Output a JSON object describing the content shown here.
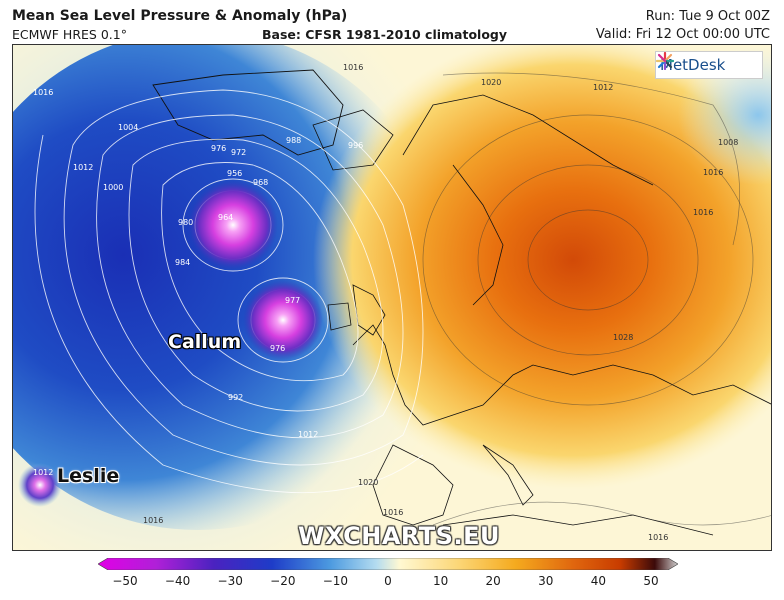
{
  "header": {
    "title": "Mean Sea Level Pressure & Anomaly (hPa)",
    "model": "ECMWF HRES 0.1°",
    "base": "Base: CFSR 1981-2010 climatology",
    "run": "Run: Tue 9 Oct 00Z",
    "valid": "Valid: Fri 12 Oct 00:00 UTC"
  },
  "brand": {
    "logo_text": "MetDesk",
    "watermark": "WXCHARTS.EU"
  },
  "storms": {
    "callum": "Callum",
    "leslie": "Leslie"
  },
  "isobars": {
    "l1": "1016",
    "l2": "1016",
    "l3": "1012",
    "l4": "1004",
    "l5": "1000",
    "l6": "1012",
    "l7": "988",
    "l8": "996",
    "l9": "976",
    "l10": "972",
    "l11": "968",
    "l12": "964",
    "l13": "956",
    "l14": "980",
    "l15": "984",
    "l16": "977",
    "l17": "976",
    "l18": "992",
    "l19": "1012",
    "l20": "1020",
    "l21": "1012",
    "l22": "1016",
    "l23": "1008",
    "l24": "1016",
    "l25": "1028",
    "l26": "1020",
    "l27": "1016",
    "l28": "1016",
    "l29": "1016"
  },
  "colorbar": {
    "ticks": [
      "−50",
      "−40",
      "−30",
      "−20",
      "−10",
      "0",
      "10",
      "20",
      "30",
      "40",
      "50"
    ],
    "colors": {
      "deep_negative": "#e100e6",
      "negative": "#1e3cc8",
      "light_negative": "#b4dcf0",
      "neutral": "#fff8d2",
      "positive": "#f5aa1e",
      "strong_positive": "#c83c00",
      "extreme_positive": "#3c0a0a"
    }
  }
}
